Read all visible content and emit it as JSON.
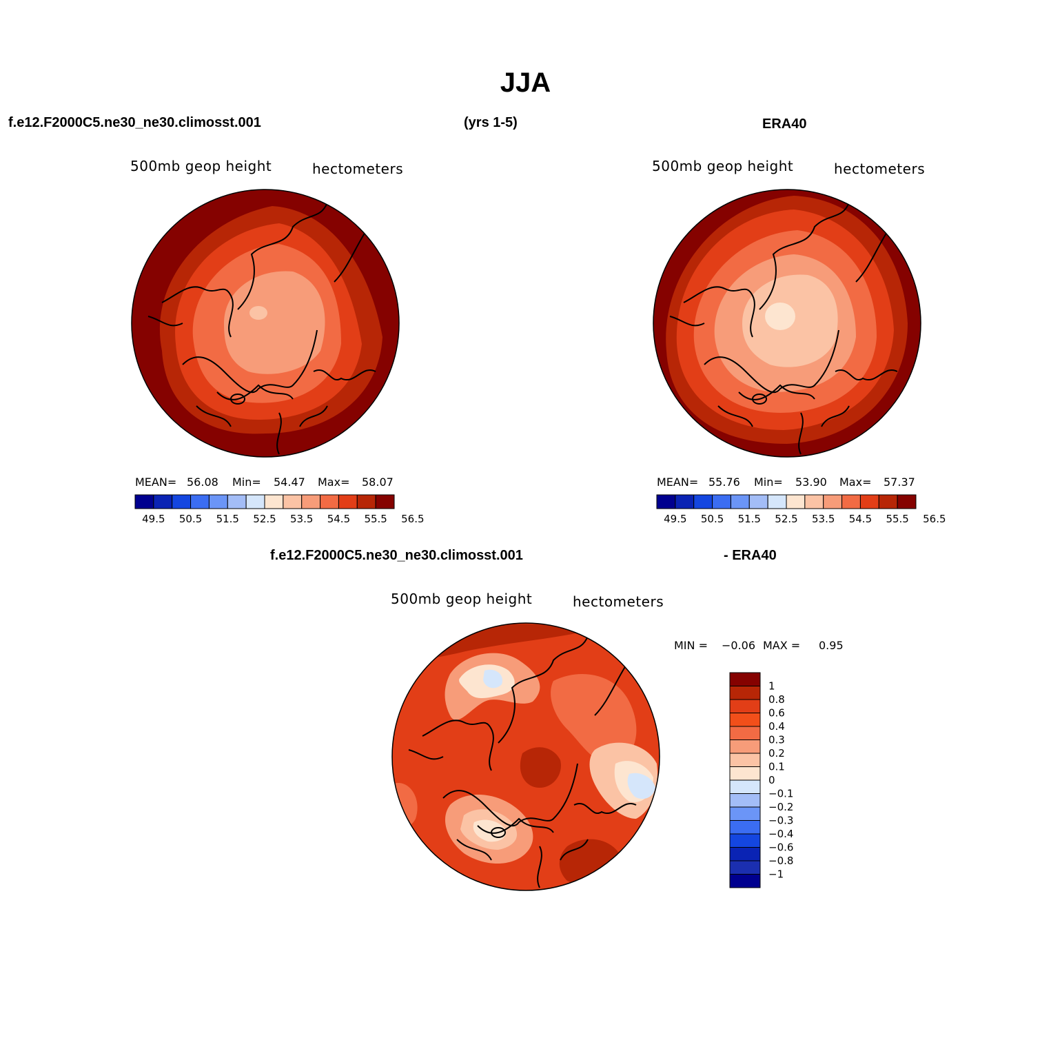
{
  "title": "JJA",
  "header": {
    "case_name": "f.e12.F2000C5.ne30_ne30.climosst.001",
    "years": "(yrs 1-5)",
    "obs_name": "ERA40",
    "diff_case_name": "f.e12.F2000C5.ne30_ne30.climosst.001",
    "diff_obs_name": "- ERA40"
  },
  "panels": {
    "model": {
      "variable": "500mb geop height",
      "units": "hectometers",
      "stats": {
        "mean_label": "MEAN=",
        "mean": "56.08",
        "min_label": "Min=",
        "min": "54.47",
        "max_label": "Max=",
        "max": "58.07"
      }
    },
    "obs": {
      "variable": "500mb geop height",
      "units": "hectometers",
      "stats": {
        "mean_label": "MEAN=",
        "mean": "55.76",
        "min_label": "Min=",
        "min": "53.90",
        "max_label": "Max=",
        "max": "57.37"
      }
    },
    "diff": {
      "variable": "500mb geop height",
      "units": "hectometers",
      "stats": {
        "min_label": "MIN =",
        "min": "−0.06",
        "max_label": "MAX =",
        "max": "0.95"
      }
    }
  },
  "colorbars": {
    "field": {
      "colors": [
        "#00008f",
        "#0a23b4",
        "#1446e0",
        "#3b6df2",
        "#6b95f7",
        "#a3bdf7",
        "#d5e6fb",
        "#fde5d0",
        "#fbc3a5",
        "#f79c79",
        "#f26b44",
        "#e23e17",
        "#b72606",
        "#850200"
      ],
      "labels": [
        "49.5",
        "50.5",
        "51.5",
        "52.5",
        "53.5",
        "54.5",
        "55.5",
        "56.5"
      ]
    },
    "diff": {
      "colors_top_to_bottom": [
        "#850200",
        "#b72606",
        "#e23e17",
        "#f24f1a",
        "#f26b44",
        "#f79c79",
        "#fbc3a5",
        "#fde5d0",
        "#d5e6fb",
        "#a3bdf7",
        "#6b95f7",
        "#3b6df2",
        "#1446e0",
        "#0a23b4",
        "#1b2fb0",
        "#00008f"
      ],
      "labels": [
        "1",
        "0.8",
        "0.6",
        "0.4",
        "0.3",
        "0.2",
        "0.1",
        "0",
        "−0.1",
        "−0.2",
        "−0.3",
        "−0.4",
        "−0.6",
        "−0.8",
        "−1"
      ]
    }
  },
  "chart_data": [
    {
      "type": "heatmap",
      "title": "500mb geop height",
      "subtitle": "f.e12.F2000C5.ne30_ne30.climosst.001 (yrs 1-5)",
      "units": "hectometers",
      "projection": "polar stereographic, northern hemisphere",
      "levels": [
        49.5,
        50,
        50.5,
        51,
        51.5,
        52,
        52.5,
        53,
        53.5,
        54,
        54.5,
        55,
        55.5,
        56,
        56.5
      ],
      "mean": 56.08,
      "min": 54.47,
      "max": 58.07
    },
    {
      "type": "heatmap",
      "title": "500mb geop height",
      "subtitle": "ERA40",
      "units": "hectometers",
      "projection": "polar stereographic, northern hemisphere",
      "levels": [
        49.5,
        50,
        50.5,
        51,
        51.5,
        52,
        52.5,
        53,
        53.5,
        54,
        54.5,
        55,
        55.5,
        56,
        56.5
      ],
      "mean": 55.76,
      "min": 53.9,
      "max": 57.37
    },
    {
      "type": "heatmap",
      "title": "500mb geop height",
      "subtitle": "f.e12.F2000C5.ne30_ne30.climosst.001 - ERA40",
      "units": "hectometers",
      "projection": "polar stereographic, northern hemisphere",
      "levels": [
        -1,
        -0.8,
        -0.6,
        -0.4,
        -0.3,
        -0.2,
        -0.1,
        0,
        0.1,
        0.2,
        0.3,
        0.4,
        0.6,
        0.8,
        1
      ],
      "min": -0.06,
      "max": 0.95
    }
  ]
}
